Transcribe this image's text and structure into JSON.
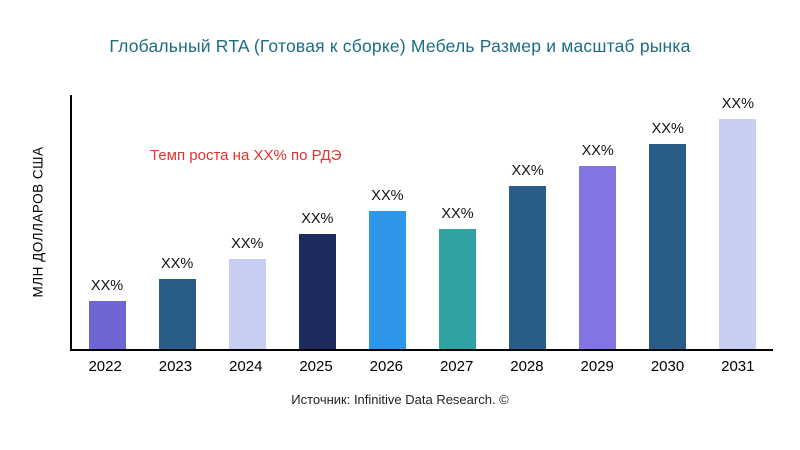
{
  "chart": {
    "title": "Глобальный RTA (Готовая к сборке) Мебель Размер и масштаб рынка",
    "title_color": "#1b6d85",
    "y_axis_label": "МЛН ДОЛЛАРОВ США",
    "annotation": "Темп роста на XX% по РДЭ",
    "annotation_color": "#e83030",
    "source": "Источник: Infinitive Data Research. ©"
  },
  "chart_data": {
    "type": "bar",
    "title": "Глобальный RTA (Готовая к сборке) Мебель Размер и масштаб рынка",
    "xlabel": "",
    "ylabel": "МЛН ДОЛЛАРОВ США",
    "categories": [
      "2022",
      "2023",
      "2024",
      "2025",
      "2026",
      "2027",
      "2028",
      "2029",
      "2030",
      "2031"
    ],
    "values": [
      19,
      28,
      36,
      46,
      55,
      48,
      65,
      73,
      82,
      92
    ],
    "values_note": "actual values are masked as XX% in the figure; values are relative bar heights (0-100 index) estimated from pixels",
    "bar_labels": [
      "XX%",
      "XX%",
      "XX%",
      "XX%",
      "XX%",
      "XX%",
      "XX%",
      "XX%",
      "XX%",
      "XX%"
    ],
    "bar_colors": [
      "#6f66d6",
      "#2a5c88",
      "#c8cdf2",
      "#1e2b5e",
      "#2b96ea",
      "#2fa3a3",
      "#2a5c88",
      "#8274e2",
      "#2a5c88",
      "#c8cdf2"
    ],
    "ylim": [
      0,
      100
    ],
    "grid": false,
    "legend": "none",
    "annotations": [
      {
        "text": "Темп роста на XX% по РДЭ",
        "color": "#e83030",
        "position": "upper-left-of-plot"
      }
    ]
  }
}
